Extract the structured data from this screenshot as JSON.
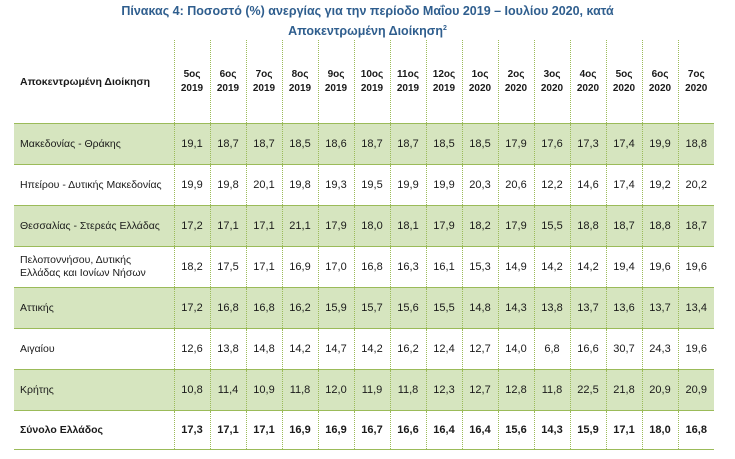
{
  "title": {
    "line1": "Πίνακας 4: Ποσοστό (%) ανεργίας για την περίοδο Μαΐου 2019 – Ιουλίου 2020, κατά",
    "line2": "Αποκεντρωμένη Διοίκηση",
    "footnote": "2"
  },
  "table": {
    "region_header": "Αποκεντρωμένη Διοίκηση",
    "columns": [
      {
        "month": "5ος",
        "year": "2019"
      },
      {
        "month": "6ος",
        "year": "2019"
      },
      {
        "month": "7ος",
        "year": "2019"
      },
      {
        "month": "8ος",
        "year": "2019"
      },
      {
        "month": "9ος",
        "year": "2019"
      },
      {
        "month": "10ος",
        "year": "2019"
      },
      {
        "month": "11ος",
        "year": "2019"
      },
      {
        "month": "12ος",
        "year": "2019"
      },
      {
        "month": "1ος",
        "year": "2020"
      },
      {
        "month": "2ος",
        "year": "2020"
      },
      {
        "month": "3ος",
        "year": "2020"
      },
      {
        "month": "4ος",
        "year": "2020"
      },
      {
        "month": "5ος",
        "year": "2020"
      },
      {
        "month": "6ος",
        "year": "2020"
      },
      {
        "month": "7ος",
        "year": "2020"
      }
    ],
    "rows": [
      {
        "region": "Μακεδονίας - Θράκης",
        "values": [
          "19,1",
          "18,7",
          "18,7",
          "18,5",
          "18,6",
          "18,7",
          "18,7",
          "18,5",
          "18,5",
          "17,9",
          "17,6",
          "17,3",
          "17,4",
          "19,9",
          "18,8"
        ]
      },
      {
        "region": "Ηπείρου - Δυτικής Μακεδονίας",
        "values": [
          "19,9",
          "19,8",
          "20,1",
          "19,8",
          "19,3",
          "19,5",
          "19,9",
          "19,9",
          "20,3",
          "20,6",
          "12,2",
          "14,6",
          "17,4",
          "19,2",
          "20,2"
        ]
      },
      {
        "region": "Θεσσαλίας - Στερεάς Ελλάδας",
        "values": [
          "17,2",
          "17,1",
          "17,1",
          "21,1",
          "17,9",
          "18,0",
          "18,1",
          "17,9",
          "18,2",
          "17,9",
          "15,5",
          "18,8",
          "18,7",
          "18,8",
          "18,7"
        ]
      },
      {
        "region": "Πελοποννήσου, Δυτικής Ελλάδας και Ιονίων Νήσων",
        "values": [
          "18,2",
          "17,5",
          "17,1",
          "16,9",
          "17,0",
          "16,8",
          "16,3",
          "16,1",
          "15,3",
          "14,9",
          "14,2",
          "14,2",
          "19,4",
          "19,6",
          "19,6"
        ]
      },
      {
        "region": "Αττικής",
        "values": [
          "17,2",
          "16,8",
          "16,8",
          "16,2",
          "15,9",
          "15,7",
          "15,6",
          "15,5",
          "14,8",
          "14,3",
          "13,8",
          "13,7",
          "13,6",
          "13,7",
          "13,4"
        ]
      },
      {
        "region": "Αιγαίου",
        "values": [
          "12,6",
          "13,8",
          "14,8",
          "14,2",
          "14,7",
          "14,2",
          "16,2",
          "12,4",
          "12,7",
          "14,0",
          "6,8",
          "16,6",
          "30,7",
          "24,3",
          "19,6"
        ]
      },
      {
        "region": "Κρήτης",
        "values": [
          "10,8",
          "11,4",
          "10,9",
          "11,8",
          "12,0",
          "11,9",
          "11,8",
          "12,3",
          "12,7",
          "12,8",
          "11,8",
          "22,5",
          "21,8",
          "20,9",
          "20,9"
        ]
      }
    ],
    "total": {
      "region": "Σύνολο Ελλάδος",
      "values": [
        "17,3",
        "17,1",
        "17,1",
        "16,9",
        "16,9",
        "16,7",
        "16,6",
        "16,4",
        "16,4",
        "15,6",
        "14,3",
        "15,9",
        "17,1",
        "18,0",
        "16,8"
      ]
    }
  }
}
